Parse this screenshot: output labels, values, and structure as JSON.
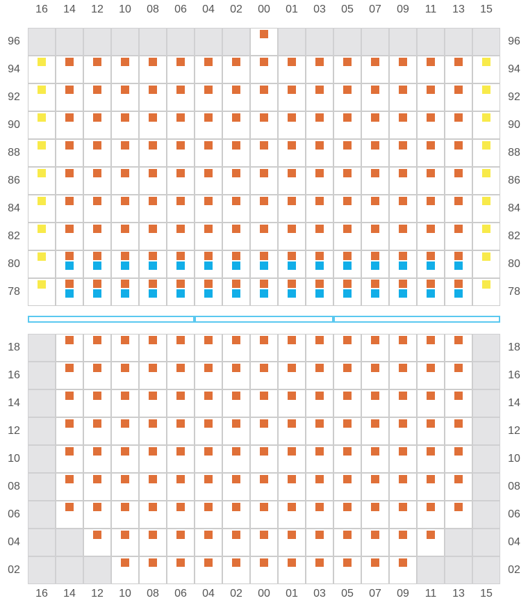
{
  "columns": [
    "16",
    "14",
    "12",
    "10",
    "08",
    "06",
    "04",
    "02",
    "00",
    "01",
    "03",
    "05",
    "07",
    "09",
    "11",
    "13",
    "15"
  ],
  "upper_rows": [
    "96",
    "94",
    "92",
    "90",
    "88",
    "86",
    "84",
    "82",
    "80",
    "78"
  ],
  "lower_rows": [
    "18",
    "16",
    "14",
    "12",
    "10",
    "08",
    "06",
    "04",
    "02"
  ],
  "colors": {
    "available": "#e07038",
    "premium": "#f8ea4a",
    "accessible": "#12aee8",
    "blocked": "#e4e4e6"
  },
  "upper_seats": {
    "96": {
      "gray": [
        "16",
        "14",
        "12",
        "10",
        "08",
        "06",
        "04",
        "02",
        "01",
        "03",
        "05",
        "07",
        "09",
        "11",
        "13",
        "15"
      ],
      "yellow": [],
      "orange": [
        "00"
      ],
      "blue": []
    },
    "94": {
      "gray": [],
      "yellow": [
        "16",
        "15"
      ],
      "orange": [
        "14",
        "12",
        "10",
        "08",
        "06",
        "04",
        "02",
        "00",
        "01",
        "03",
        "05",
        "07",
        "09",
        "11",
        "13"
      ],
      "blue": []
    },
    "92": {
      "gray": [],
      "yellow": [
        "16",
        "15"
      ],
      "orange": [
        "14",
        "12",
        "10",
        "08",
        "06",
        "04",
        "02",
        "00",
        "01",
        "03",
        "05",
        "07",
        "09",
        "11",
        "13"
      ],
      "blue": []
    },
    "90": {
      "gray": [],
      "yellow": [
        "16",
        "15"
      ],
      "orange": [
        "14",
        "12",
        "10",
        "08",
        "06",
        "04",
        "02",
        "00",
        "01",
        "03",
        "05",
        "07",
        "09",
        "11",
        "13"
      ],
      "blue": []
    },
    "88": {
      "gray": [],
      "yellow": [
        "16",
        "15"
      ],
      "orange": [
        "14",
        "12",
        "10",
        "08",
        "06",
        "04",
        "02",
        "00",
        "01",
        "03",
        "05",
        "07",
        "09",
        "11",
        "13"
      ],
      "blue": []
    },
    "86": {
      "gray": [],
      "yellow": [
        "16",
        "15"
      ],
      "orange": [
        "14",
        "12",
        "10",
        "08",
        "06",
        "04",
        "02",
        "00",
        "01",
        "03",
        "05",
        "07",
        "09",
        "11",
        "13"
      ],
      "blue": []
    },
    "84": {
      "gray": [],
      "yellow": [
        "16",
        "15"
      ],
      "orange": [
        "14",
        "12",
        "10",
        "08",
        "06",
        "04",
        "02",
        "00",
        "01",
        "03",
        "05",
        "07",
        "09",
        "11",
        "13"
      ],
      "blue": []
    },
    "82": {
      "gray": [],
      "yellow": [
        "16",
        "15"
      ],
      "orange": [
        "14",
        "12",
        "10",
        "08",
        "06",
        "04",
        "02",
        "00",
        "01",
        "03",
        "05",
        "07",
        "09",
        "11",
        "13"
      ],
      "blue": []
    },
    "80": {
      "gray": [],
      "yellow": [
        "16",
        "15"
      ],
      "orange": [
        "14",
        "12",
        "10",
        "08",
        "06",
        "04",
        "02",
        "00",
        "01",
        "03",
        "05",
        "07",
        "09",
        "11",
        "13"
      ],
      "blue": [
        "14",
        "12",
        "10",
        "08",
        "06",
        "04",
        "02",
        "00",
        "01",
        "03",
        "05",
        "07",
        "09",
        "11",
        "13"
      ]
    },
    "78": {
      "gray": [],
      "yellow": [
        "16",
        "15"
      ],
      "orange": [
        "14",
        "12",
        "10",
        "08",
        "06",
        "04",
        "02",
        "00",
        "01",
        "03",
        "05",
        "07",
        "09",
        "11",
        "13"
      ],
      "blue": [
        "14",
        "12",
        "10",
        "08",
        "06",
        "04",
        "02",
        "00",
        "01",
        "03",
        "05",
        "07",
        "09",
        "11",
        "13"
      ]
    }
  },
  "lower_seats": {
    "18": {
      "gray": [
        "16",
        "15"
      ],
      "orange": [
        "14",
        "12",
        "10",
        "08",
        "06",
        "04",
        "02",
        "00",
        "01",
        "03",
        "05",
        "07",
        "09",
        "11",
        "13"
      ]
    },
    "16": {
      "gray": [
        "16",
        "15"
      ],
      "orange": [
        "14",
        "12",
        "10",
        "08",
        "06",
        "04",
        "02",
        "00",
        "01",
        "03",
        "05",
        "07",
        "09",
        "11",
        "13"
      ]
    },
    "14": {
      "gray": [
        "16",
        "15"
      ],
      "orange": [
        "14",
        "12",
        "10",
        "08",
        "06",
        "04",
        "02",
        "00",
        "01",
        "03",
        "05",
        "07",
        "09",
        "11",
        "13"
      ]
    },
    "12": {
      "gray": [
        "16",
        "15"
      ],
      "orange": [
        "14",
        "12",
        "10",
        "08",
        "06",
        "04",
        "02",
        "00",
        "01",
        "03",
        "05",
        "07",
        "09",
        "11",
        "13"
      ]
    },
    "10": {
      "gray": [
        "16",
        "15"
      ],
      "orange": [
        "14",
        "12",
        "10",
        "08",
        "06",
        "04",
        "02",
        "00",
        "01",
        "03",
        "05",
        "07",
        "09",
        "11",
        "13"
      ]
    },
    "08": {
      "gray": [
        "16",
        "15"
      ],
      "orange": [
        "14",
        "12",
        "10",
        "08",
        "06",
        "04",
        "02",
        "00",
        "01",
        "03",
        "05",
        "07",
        "09",
        "11",
        "13"
      ]
    },
    "06": {
      "gray": [
        "16",
        "15"
      ],
      "orange": [
        "14",
        "12",
        "10",
        "08",
        "06",
        "04",
        "02",
        "00",
        "01",
        "03",
        "05",
        "07",
        "09",
        "11",
        "13"
      ]
    },
    "04": {
      "gray": [
        "16",
        "14",
        "13",
        "15"
      ],
      "orange": [
        "12",
        "10",
        "08",
        "06",
        "04",
        "02",
        "00",
        "01",
        "03",
        "05",
        "07",
        "09",
        "11"
      ]
    },
    "02": {
      "gray": [
        "16",
        "14",
        "12",
        "11",
        "13",
        "15"
      ],
      "orange": [
        "10",
        "08",
        "06",
        "04",
        "02",
        "00",
        "01",
        "03",
        "05",
        "07",
        "09"
      ]
    }
  },
  "aisle_segments": 3
}
